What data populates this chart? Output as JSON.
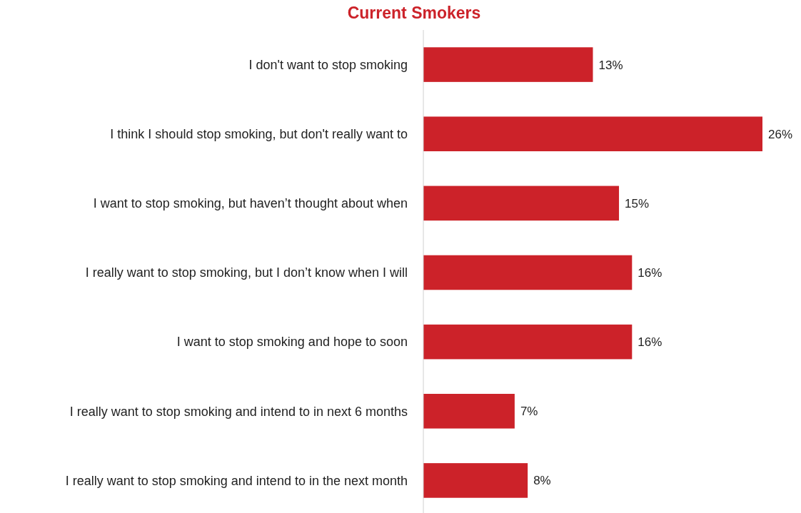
{
  "chart_data": {
    "type": "bar",
    "orientation": "horizontal",
    "title": "Current Smokers",
    "categories": [
      "I don't want to stop smoking",
      "I think I should stop smoking, but don't really want to",
      "I want to stop smoking, but haven’t thought about when",
      "I really want to stop smoking, but I don’t know when I will",
      "I want to stop smoking and hope to soon",
      "I really want to stop smoking and intend to in next 6 months",
      "I really want to stop smoking and intend to in the next month"
    ],
    "values": [
      13,
      26,
      15,
      16,
      16,
      7,
      8
    ],
    "value_labels": [
      "13%",
      "26%",
      "15%",
      "16%",
      "16%",
      "7%",
      "8%"
    ],
    "color": "#cc2229"
  }
}
